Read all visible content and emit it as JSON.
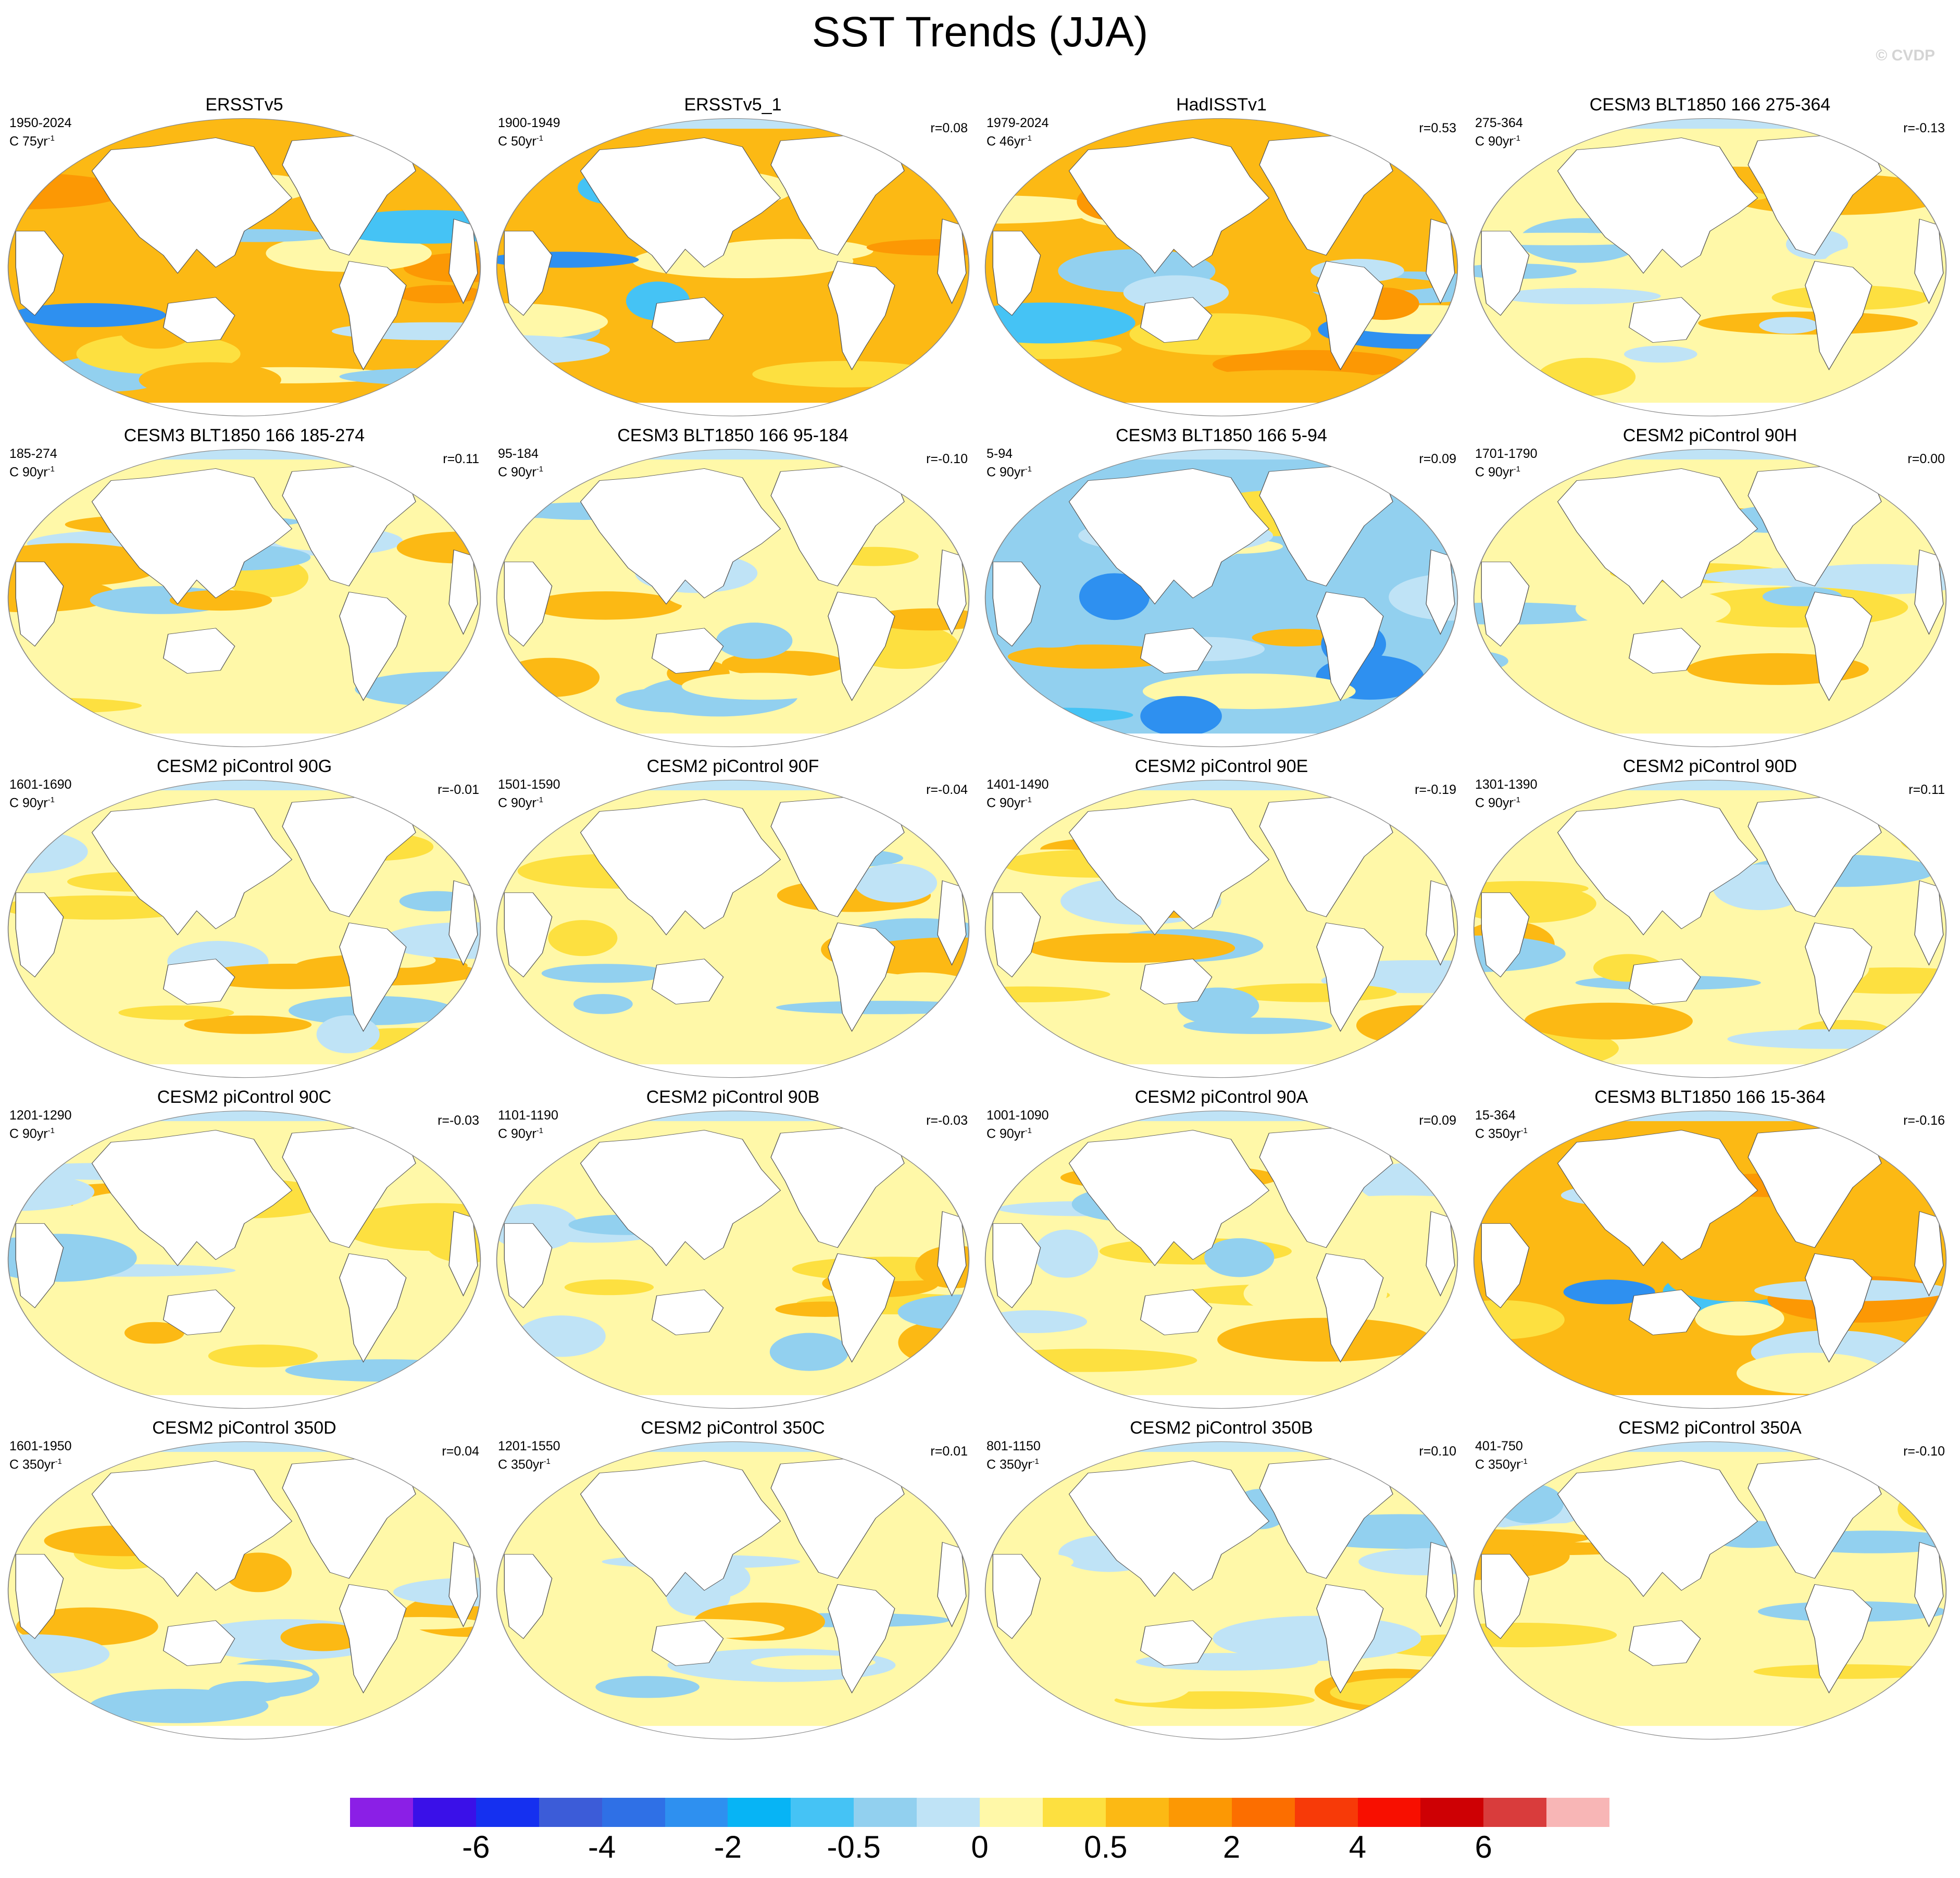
{
  "title": "SST Trends (JJA)",
  "watermark": "© CVDP",
  "units_prefix": "C",
  "panels": [
    {
      "title": "ERSSTv5",
      "years": "1950-2024",
      "per": "75yr",
      "corr": ""
    },
    {
      "title": "ERSSTv5_1",
      "years": "1900-1949",
      "per": "50yr",
      "corr": "r=0.08"
    },
    {
      "title": "HadISSTv1",
      "years": "1979-2024",
      "per": "46yr",
      "corr": "r=0.53"
    },
    {
      "title": "CESM3 BLT1850 166 275-364",
      "years": "275-364",
      "per": "90yr",
      "corr": "r=-0.13"
    },
    {
      "title": "CESM3 BLT1850 166 185-274",
      "years": "185-274",
      "per": "90yr",
      "corr": "r=0.11"
    },
    {
      "title": "CESM3 BLT1850 166 95-184",
      "years": "95-184",
      "per": "90yr",
      "corr": "r=-0.10"
    },
    {
      "title": "CESM3 BLT1850 166 5-94",
      "years": "5-94",
      "per": "90yr",
      "corr": "r=0.09"
    },
    {
      "title": "CESM2 piControl 90H",
      "years": "1701-1790",
      "per": "90yr",
      "corr": "r=0.00"
    },
    {
      "title": "CESM2 piControl 90G",
      "years": "1601-1690",
      "per": "90yr",
      "corr": "r=-0.01"
    },
    {
      "title": "CESM2 piControl 90F",
      "years": "1501-1590",
      "per": "90yr",
      "corr": "r=-0.04"
    },
    {
      "title": "CESM2 piControl 90E",
      "years": "1401-1490",
      "per": "90yr",
      "corr": "r=-0.19"
    },
    {
      "title": "CESM2 piControl 90D",
      "years": "1301-1390",
      "per": "90yr",
      "corr": "r=0.11"
    },
    {
      "title": "CESM2 piControl 90C",
      "years": "1201-1290",
      "per": "90yr",
      "corr": "r=-0.03"
    },
    {
      "title": "CESM2 piControl 90B",
      "years": "1101-1190",
      "per": "90yr",
      "corr": "r=-0.03"
    },
    {
      "title": "CESM2 piControl 90A",
      "years": "1001-1090",
      "per": "90yr",
      "corr": "r=0.09"
    },
    {
      "title": "CESM3 BLT1850 166 15-364",
      "years": "15-364",
      "per": "350yr",
      "corr": "r=-0.16"
    },
    {
      "title": "CESM2 piControl 350D",
      "years": "1601-1950",
      "per": "350yr",
      "corr": "r=0.04"
    },
    {
      "title": "CESM2 piControl 350C",
      "years": "1201-1550",
      "per": "350yr",
      "corr": "r=0.01"
    },
    {
      "title": "CESM2 piControl 350B",
      "years": "801-1150",
      "per": "350yr",
      "corr": "r=0.10"
    },
    {
      "title": "CESM2 piControl 350A",
      "years": "401-750",
      "per": "350yr",
      "corr": "r=-0.10"
    }
  ],
  "colorbar": {
    "colors": [
      "#8b1fe6",
      "#3a10e8",
      "#1530f0",
      "#3c5cd8",
      "#2f70e6",
      "#2e90f0",
      "#07b4f5",
      "#45c3f5",
      "#92d0ef",
      "#bfe3f6",
      "#fff8a8",
      "#fde040",
      "#fcb914",
      "#fc9804",
      "#fc6e00",
      "#f73a08",
      "#f80f00",
      "#ce0004",
      "#d93c3c",
      "#f8b6b6"
    ],
    "labels": [
      {
        "text": "-6",
        "boundary": 2
      },
      {
        "text": "-4",
        "boundary": 4
      },
      {
        "text": "-2",
        "boundary": 6
      },
      {
        "text": "-0.5",
        "boundary": 8
      },
      {
        "text": "0",
        "boundary": 10
      },
      {
        "text": "0.5",
        "boundary": 12
      },
      {
        "text": "2",
        "boundary": 14
      },
      {
        "text": "4",
        "boundary": 16
      },
      {
        "text": "6",
        "boundary": 18
      }
    ]
  }
}
